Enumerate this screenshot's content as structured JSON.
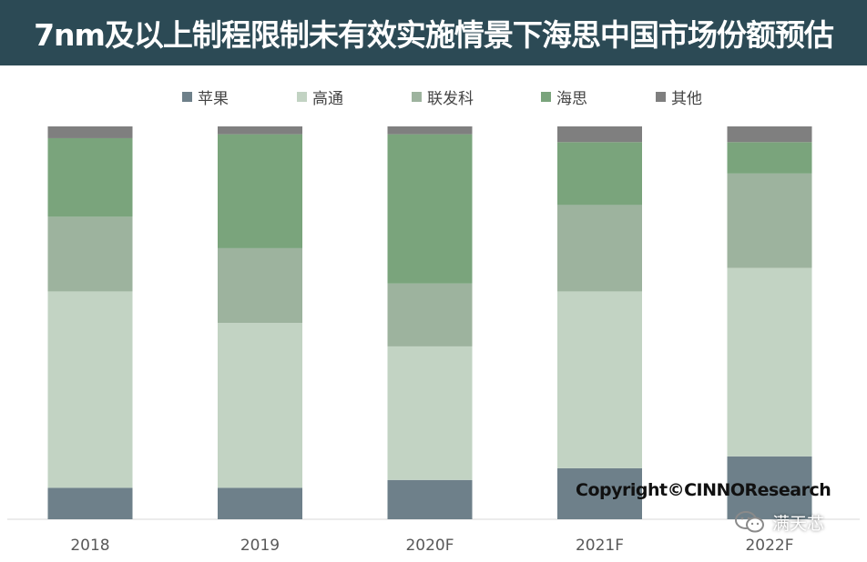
{
  "title": "7nm及以上制程限制未有效实施情景下海思中国市场份额预估",
  "copyright": "Copyright©CINNOResearch",
  "watermark": {
    "text": "满天芯",
    "icon": "wechat-icon"
  },
  "colors": {
    "banner": "#2c4a55",
    "apple": "#6e808a",
    "qualcomm": "#c2d3c3",
    "mediatek": "#9db39e",
    "hisilicon": "#7aa47c",
    "others": "#7f7f7f"
  },
  "chart_data": {
    "type": "bar",
    "stacked": true,
    "normalized": true,
    "title": "7nm及以上制程限制未有效实施情景下海思中国市场份额预估",
    "xlabel": "",
    "ylabel": "",
    "ylim": [
      0,
      100
    ],
    "grid": false,
    "legend_position": "top",
    "categories": [
      "2018",
      "2019",
      "2020F",
      "2021F",
      "2022F"
    ],
    "series": [
      {
        "name": "苹果",
        "color": "#6e808a",
        "values": [
          8,
          8,
          10,
          13,
          16
        ]
      },
      {
        "name": "高通",
        "color": "#c2d3c3",
        "values": [
          50,
          42,
          34,
          45,
          48
        ]
      },
      {
        "name": "联发科",
        "color": "#9db39e",
        "values": [
          19,
          19,
          16,
          22,
          24
        ]
      },
      {
        "name": "海思",
        "color": "#7aa47c",
        "values": [
          20,
          29,
          38,
          16,
          8
        ]
      },
      {
        "name": "其他",
        "color": "#7f7f7f",
        "values": [
          3,
          2,
          2,
          4,
          4
        ]
      }
    ]
  }
}
